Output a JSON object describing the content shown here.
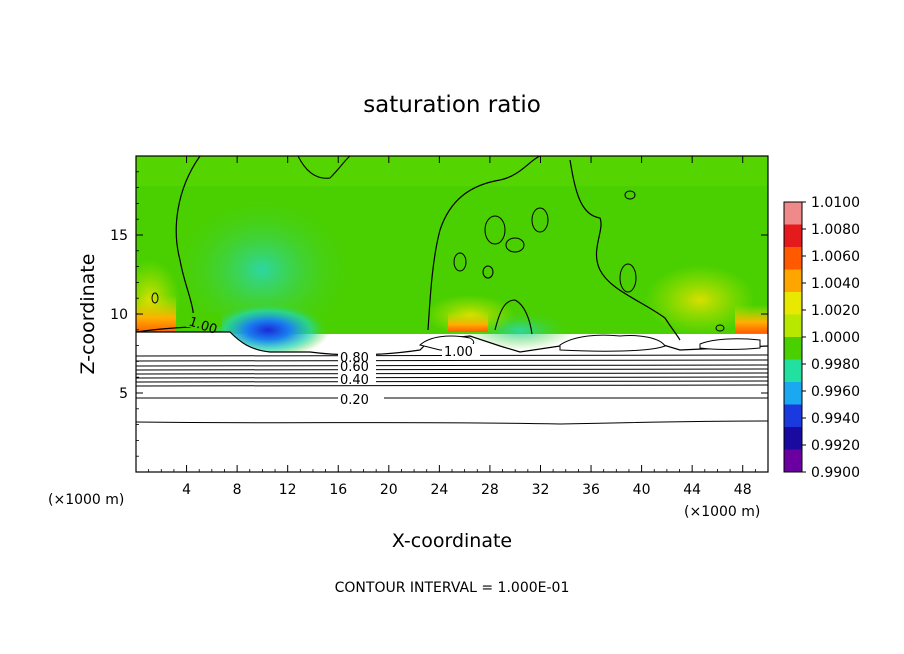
{
  "chart_data": {
    "type": "heatmap",
    "title": "saturation ratio",
    "xlabel": "X-coordinate",
    "ylabel": "Z-coordinate",
    "x_unit_left": "(×1000 m)",
    "x_unit_right": "(×1000 m)",
    "xlim": [
      0,
      50
    ],
    "ylim": [
      0,
      20
    ],
    "xticks": [
      4,
      8,
      12,
      16,
      20,
      24,
      28,
      32,
      36,
      40,
      44,
      48
    ],
    "yticks": [
      5,
      10,
      15
    ],
    "colorbar": {
      "levels": [
        "1.0100",
        "1.0080",
        "1.0060",
        "1.0040",
        "1.0020",
        "1.0000",
        "0.9980",
        "0.9960",
        "0.9940",
        "0.9920",
        "0.9900"
      ],
      "colors": [
        "#f08a8a",
        "#e41a1c",
        "#ff5a00",
        "#ffa500",
        "#e8e800",
        "#b8e800",
        "#4ad000",
        "#22e0a0",
        "#1aa8f0",
        "#1a3ae0",
        "#1a0aa0",
        "#6a00a0"
      ]
    },
    "contour_labels": [
      "1.00",
      "1.00",
      "0.80",
      "0.60",
      "0.40",
      "0.20"
    ],
    "contour_interval": "CONTOUR INTERVAL = 1.000E-01"
  }
}
